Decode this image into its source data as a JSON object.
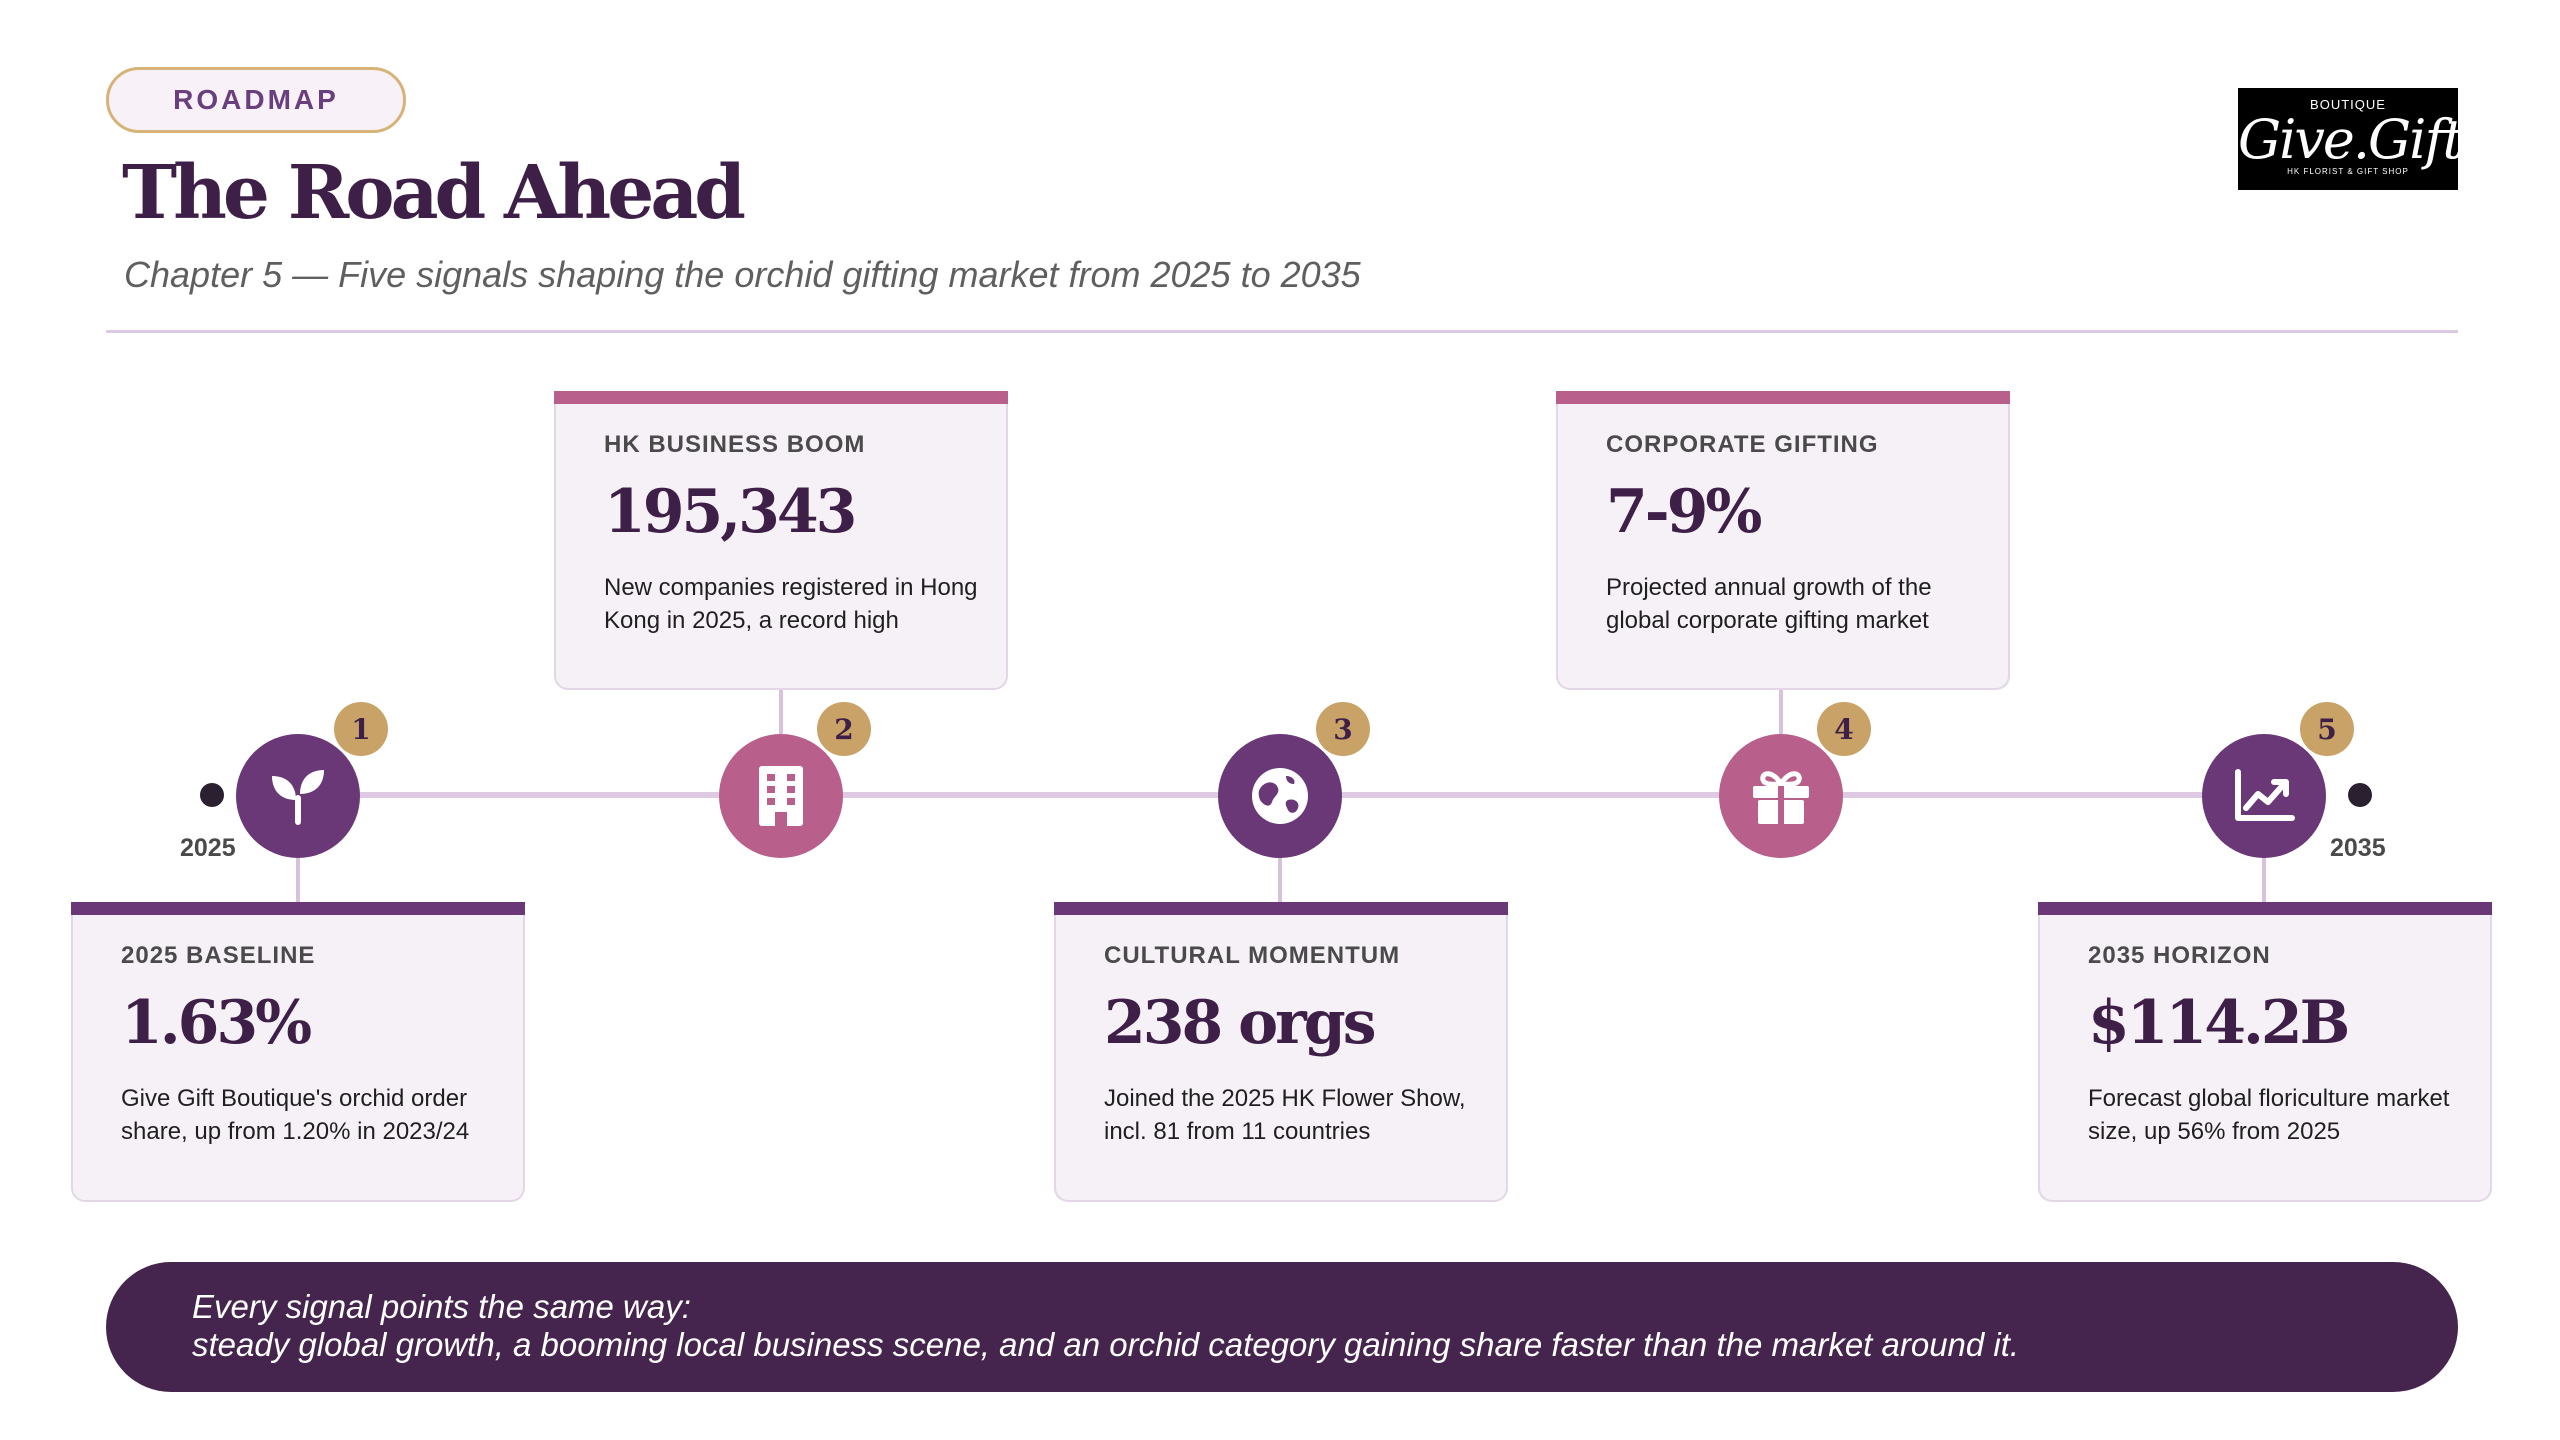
{
  "header": {
    "badge": "ROADMAP",
    "title": "The Road Ahead",
    "subtitle": "Chapter 5 — Five signals shaping the orchid gifting market from 2025 to 2035"
  },
  "logo": {
    "top_text": "BOUTIQUE",
    "script_text": "Give.Gift.",
    "tagline": "HK FLORIST & GIFT SHOP"
  },
  "timeline": {
    "start_label": "2025",
    "end_label": "2035",
    "milestones": [
      {
        "number": "1",
        "icon": "sprout-icon",
        "color": "#6a3877",
        "heading": "2025 BASELINE",
        "value": "1.63%",
        "description": "Give Gift Boutique's orchid order share, up from 1.20% in 2023/24"
      },
      {
        "number": "2",
        "icon": "building-icon",
        "color": "#b8608b",
        "heading": "HK BUSINESS BOOM",
        "value": "195,343",
        "description": "New companies registered in Hong Kong in 2025, a record high"
      },
      {
        "number": "3",
        "icon": "globe-icon",
        "color": "#6a3877",
        "heading": "CULTURAL MOMENTUM",
        "value": "238 orgs",
        "description": "Joined the 2025 HK Flower Show, incl. 81 from 11 countries"
      },
      {
        "number": "4",
        "icon": "gift-icon",
        "color": "#b8608b",
        "heading": "CORPORATE GIFTING",
        "value": "7-9%",
        "description": "Projected annual growth of the global corporate gifting market"
      },
      {
        "number": "5",
        "icon": "trend-chart-icon",
        "color": "#6a3877",
        "heading": "2035 HORIZON",
        "value": "$114.2B",
        "description": "Forecast global floriculture market size, up 56% from 2025"
      }
    ]
  },
  "banner": {
    "line1": "Every signal points the same way:",
    "line2": "steady global growth, a booming local business scene, and an orchid category gaining share faster than the market around it."
  }
}
